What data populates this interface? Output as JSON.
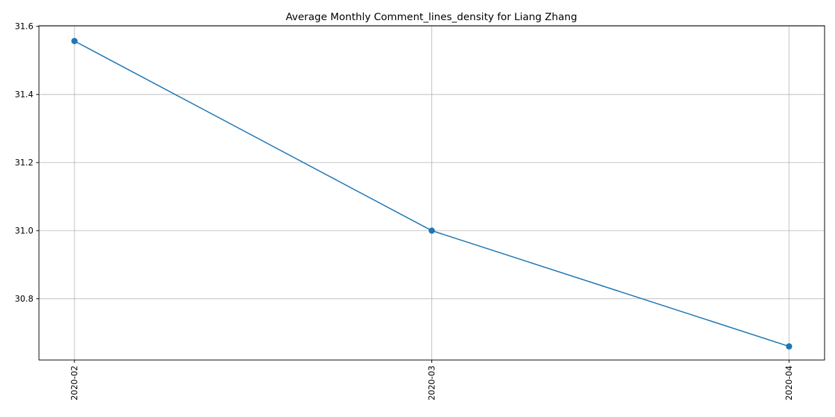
{
  "chart_data": {
    "type": "line",
    "title": "Average Monthly Comment_lines_density for Liang Zhang",
    "xlabel": "",
    "ylabel": "",
    "categories": [
      "2020-02",
      "2020-03",
      "2020-04"
    ],
    "series": [
      {
        "values": [
          31.557,
          31.0,
          30.66
        ],
        "color": "#1f77b4",
        "marker": "circle"
      }
    ],
    "yticks": [
      "30.8",
      "31.0",
      "31.2",
      "31.4",
      "31.6"
    ],
    "ylim": [
      30.62,
      31.602
    ],
    "grid": true,
    "legend": "none",
    "x_tick_rotation": 90
  }
}
